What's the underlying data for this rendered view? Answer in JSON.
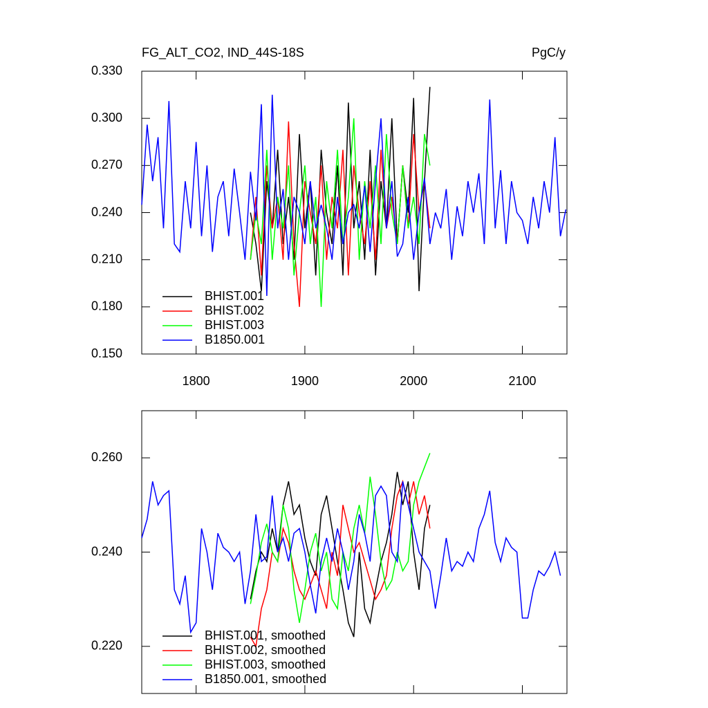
{
  "chart_data": [
    {
      "type": "line",
      "title": "FG_ALT_CO2, IND_44S-18S",
      "units": "PgC/y",
      "xlim": [
        1750,
        2141
      ],
      "xticks": [
        {
          "value": 1800,
          "label": "1800"
        },
        {
          "value": 1900,
          "label": "1900"
        },
        {
          "value": 2000,
          "label": "2000"
        },
        {
          "value": 2100,
          "label": "2100"
        }
      ],
      "show_xtick_labels": true,
      "ylim": [
        0.15,
        0.33
      ],
      "yticks": [
        {
          "value": 0.15,
          "label": "0.150"
        },
        {
          "value": 0.18,
          "label": "0.180"
        },
        {
          "value": 0.21,
          "label": "0.210"
        },
        {
          "value": 0.24,
          "label": "0.240"
        },
        {
          "value": 0.27,
          "label": "0.270"
        },
        {
          "value": 0.3,
          "label": "0.300"
        },
        {
          "value": 0.33,
          "label": "0.330"
        }
      ],
      "legend": "lower left",
      "series": [
        {
          "name": "BHIST.001",
          "color": "#000000",
          "x": [
            1850,
            1855,
            1860,
            1865,
            1870,
            1875,
            1880,
            1885,
            1890,
            1895,
            1900,
            1905,
            1910,
            1915,
            1920,
            1925,
            1930,
            1935,
            1940,
            1945,
            1950,
            1955,
            1960,
            1965,
            1970,
            1975,
            1980,
            1985,
            1990,
            1995,
            2000,
            2005,
            2010,
            2015
          ],
          "values": [
            0.24,
            0.22,
            0.19,
            0.26,
            0.23,
            0.28,
            0.22,
            0.25,
            0.21,
            0.29,
            0.23,
            0.26,
            0.2,
            0.28,
            0.24,
            0.22,
            0.27,
            0.2,
            0.31,
            0.23,
            0.26,
            0.21,
            0.28,
            0.2,
            0.26,
            0.23,
            0.3,
            0.22,
            0.27,
            0.24,
            0.313,
            0.19,
            0.26,
            0.32
          ]
        },
        {
          "name": "BHIST.002",
          "color": "#ff0000",
          "x": [
            1850,
            1855,
            1860,
            1865,
            1870,
            1875,
            1880,
            1885,
            1890,
            1895,
            1900,
            1905,
            1910,
            1915,
            1920,
            1925,
            1930,
            1935,
            1940,
            1945,
            1950,
            1955,
            1960,
            1965,
            1970,
            1975,
            1980,
            1985,
            1990,
            1995,
            2000,
            2005,
            2010,
            2015
          ],
          "values": [
            0.21,
            0.25,
            0.2,
            0.27,
            0.23,
            0.25,
            0.21,
            0.298,
            0.22,
            0.18,
            0.26,
            0.24,
            0.22,
            0.27,
            0.21,
            0.25,
            0.23,
            0.28,
            0.2,
            0.27,
            0.24,
            0.22,
            0.26,
            0.21,
            0.28,
            0.23,
            0.25,
            0.22,
            0.27,
            0.23,
            0.29,
            0.24,
            0.26,
            0.23
          ]
        },
        {
          "name": "BHIST.003",
          "color": "#00ff00",
          "x": [
            1850,
            1855,
            1860,
            1865,
            1870,
            1875,
            1880,
            1885,
            1890,
            1895,
            1900,
            1905,
            1910,
            1915,
            1920,
            1925,
            1930,
            1935,
            1940,
            1945,
            1950,
            1955,
            1960,
            1965,
            1970,
            1975,
            1980,
            1985,
            1990,
            1995,
            2000,
            2005,
            2010,
            2015
          ],
          "values": [
            0.21,
            0.24,
            0.22,
            0.28,
            0.21,
            0.25,
            0.23,
            0.27,
            0.2,
            0.24,
            0.27,
            0.22,
            0.25,
            0.18,
            0.26,
            0.23,
            0.28,
            0.22,
            0.25,
            0.3,
            0.21,
            0.26,
            0.23,
            0.27,
            0.22,
            0.29,
            0.24,
            0.22,
            0.27,
            0.23,
            0.25,
            0.22,
            0.29,
            0.27
          ]
        },
        {
          "name": "B1850.001",
          "color": "#0000ff",
          "x": [
            1750,
            1755,
            1760,
            1765,
            1770,
            1775,
            1780,
            1785,
            1790,
            1795,
            1800,
            1805,
            1810,
            1815,
            1820,
            1825,
            1830,
            1835,
            1840,
            1845,
            1850,
            1855,
            1860,
            1865,
            1870,
            1875,
            1880,
            1885,
            1890,
            1895,
            1900,
            1905,
            1910,
            1915,
            1920,
            1925,
            1930,
            1935,
            1940,
            1945,
            1950,
            1955,
            1960,
            1965,
            1970,
            1975,
            1980,
            1985,
            1990,
            1995,
            2000,
            2005,
            2010,
            2015,
            2020,
            2025,
            2030,
            2035,
            2040,
            2045,
            2050,
            2055,
            2060,
            2065,
            2070,
            2075,
            2080,
            2085,
            2090,
            2095,
            2100,
            2105,
            2110,
            2115,
            2120,
            2125,
            2130,
            2135,
            2140
          ],
          "values": [
            0.245,
            0.296,
            0.26,
            0.288,
            0.23,
            0.311,
            0.22,
            0.215,
            0.26,
            0.23,
            0.285,
            0.225,
            0.27,
            0.215,
            0.25,
            0.26,
            0.225,
            0.268,
            0.24,
            0.21,
            0.266,
            0.235,
            0.309,
            0.187,
            0.315,
            0.23,
            0.255,
            0.21,
            0.25,
            0.24,
            0.22,
            0.26,
            0.23,
            0.245,
            0.23,
            0.21,
            0.25,
            0.22,
            0.24,
            0.245,
            0.23,
            0.257,
            0.215,
            0.26,
            0.3,
            0.23,
            0.26,
            0.212,
            0.22,
            0.25,
            0.21,
            0.24,
            0.262,
            0.22,
            0.24,
            0.23,
            0.255,
            0.21,
            0.244,
            0.225,
            0.26,
            0.24,
            0.265,
            0.22,
            0.312,
            0.23,
            0.267,
            0.22,
            0.26,
            0.24,
            0.235,
            0.22,
            0.25,
            0.23,
            0.26,
            0.24,
            0.288,
            0.225,
            0.242
          ]
        }
      ]
    },
    {
      "type": "line",
      "xlim": [
        1750,
        2141
      ],
      "xticks": [
        1800,
        1900,
        2000,
        2100
      ],
      "show_xtick_labels": false,
      "ylim": [
        0.21,
        0.27
      ],
      "yticks": [
        {
          "value": 0.22,
          "label": "0.220"
        },
        {
          "value": 0.24,
          "label": "0.240"
        },
        {
          "value": 0.26,
          "label": "0.260"
        }
      ],
      "legend": "lower left",
      "series": [
        {
          "name": "BHIST.001, smoothed",
          "color": "#000000",
          "x": [
            1850,
            1855,
            1860,
            1865,
            1870,
            1875,
            1880,
            1885,
            1890,
            1895,
            1900,
            1905,
            1910,
            1915,
            1920,
            1925,
            1930,
            1935,
            1940,
            1945,
            1950,
            1955,
            1960,
            1965,
            1970,
            1975,
            1980,
            1985,
            1990,
            1995,
            2000,
            2005,
            2010,
            2015
          ],
          "values": [
            0.23,
            0.236,
            0.24,
            0.238,
            0.245,
            0.24,
            0.25,
            0.255,
            0.248,
            0.25,
            0.243,
            0.238,
            0.235,
            0.248,
            0.252,
            0.245,
            0.238,
            0.232,
            0.225,
            0.222,
            0.24,
            0.228,
            0.225,
            0.232,
            0.238,
            0.242,
            0.248,
            0.257,
            0.25,
            0.255,
            0.24,
            0.232,
            0.245,
            0.25
          ]
        },
        {
          "name": "BHIST.002, smoothed",
          "color": "#ff0000",
          "x": [
            1850,
            1855,
            1860,
            1865,
            1870,
            1875,
            1880,
            1885,
            1890,
            1895,
            1900,
            1905,
            1910,
            1915,
            1920,
            1925,
            1930,
            1935,
            1940,
            1945,
            1950,
            1955,
            1960,
            1965,
            1970,
            1975,
            1980,
            1985,
            1990,
            1995,
            2000,
            2005,
            2010,
            2015
          ],
          "values": [
            0.222,
            0.22,
            0.228,
            0.232,
            0.24,
            0.238,
            0.245,
            0.242,
            0.236,
            0.232,
            0.23,
            0.233,
            0.236,
            0.232,
            0.228,
            0.24,
            0.235,
            0.25,
            0.245,
            0.24,
            0.242,
            0.238,
            0.234,
            0.23,
            0.232,
            0.235,
            0.245,
            0.252,
            0.255,
            0.25,
            0.255,
            0.248,
            0.252,
            0.245
          ]
        },
        {
          "name": "BHIST.003, smoothed",
          "color": "#00ff00",
          "x": [
            1850,
            1855,
            1860,
            1865,
            1870,
            1875,
            1880,
            1885,
            1890,
            1895,
            1900,
            1905,
            1910,
            1915,
            1920,
            1925,
            1930,
            1935,
            1940,
            1945,
            1950,
            1955,
            1960,
            1965,
            1970,
            1975,
            1980,
            1985,
            1990,
            1995,
            2000,
            2005,
            2010,
            2015
          ],
          "values": [
            0.229,
            0.235,
            0.242,
            0.246,
            0.24,
            0.238,
            0.25,
            0.245,
            0.232,
            0.225,
            0.232,
            0.24,
            0.244,
            0.236,
            0.24,
            0.23,
            0.228,
            0.24,
            0.236,
            0.245,
            0.25,
            0.244,
            0.256,
            0.248,
            0.238,
            0.232,
            0.234,
            0.24,
            0.236,
            0.238,
            0.25,
            0.255,
            0.258,
            0.261
          ]
        },
        {
          "name": "B1850.001, smoothed",
          "color": "#0000ff",
          "x": [
            1750,
            1755,
            1760,
            1765,
            1770,
            1775,
            1780,
            1785,
            1790,
            1795,
            1800,
            1805,
            1810,
            1815,
            1820,
            1825,
            1830,
            1835,
            1840,
            1845,
            1850,
            1855,
            1860,
            1865,
            1870,
            1875,
            1880,
            1885,
            1890,
            1895,
            1900,
            1905,
            1910,
            1915,
            1920,
            1925,
            1930,
            1935,
            1940,
            1945,
            1950,
            1955,
            1960,
            1965,
            1970,
            1975,
            1980,
            1985,
            1990,
            1995,
            2000,
            2005,
            2010,
            2015,
            2020,
            2025,
            2030,
            2035,
            2040,
            2045,
            2050,
            2055,
            2060,
            2065,
            2070,
            2075,
            2080,
            2085,
            2090,
            2095,
            2100,
            2105,
            2110,
            2115,
            2120,
            2125,
            2130,
            2135
          ],
          "values": [
            0.243,
            0.247,
            0.255,
            0.25,
            0.252,
            0.253,
            0.232,
            0.229,
            0.235,
            0.223,
            0.225,
            0.245,
            0.24,
            0.232,
            0.244,
            0.241,
            0.24,
            0.238,
            0.24,
            0.229,
            0.236,
            0.248,
            0.238,
            0.239,
            0.252,
            0.24,
            0.243,
            0.238,
            0.244,
            0.245,
            0.24,
            0.233,
            0.227,
            0.238,
            0.243,
            0.238,
            0.245,
            0.24,
            0.232,
            0.238,
            0.248,
            0.244,
            0.238,
            0.252,
            0.254,
            0.252,
            0.24,
            0.238,
            0.255,
            0.25,
            0.245,
            0.24,
            0.238,
            0.236,
            0.228,
            0.235,
            0.243,
            0.236,
            0.238,
            0.237,
            0.24,
            0.238,
            0.245,
            0.248,
            0.253,
            0.242,
            0.238,
            0.243,
            0.241,
            0.24,
            0.226,
            0.226,
            0.232,
            0.236,
            0.235,
            0.237,
            0.24,
            0.235
          ]
        }
      ]
    }
  ]
}
